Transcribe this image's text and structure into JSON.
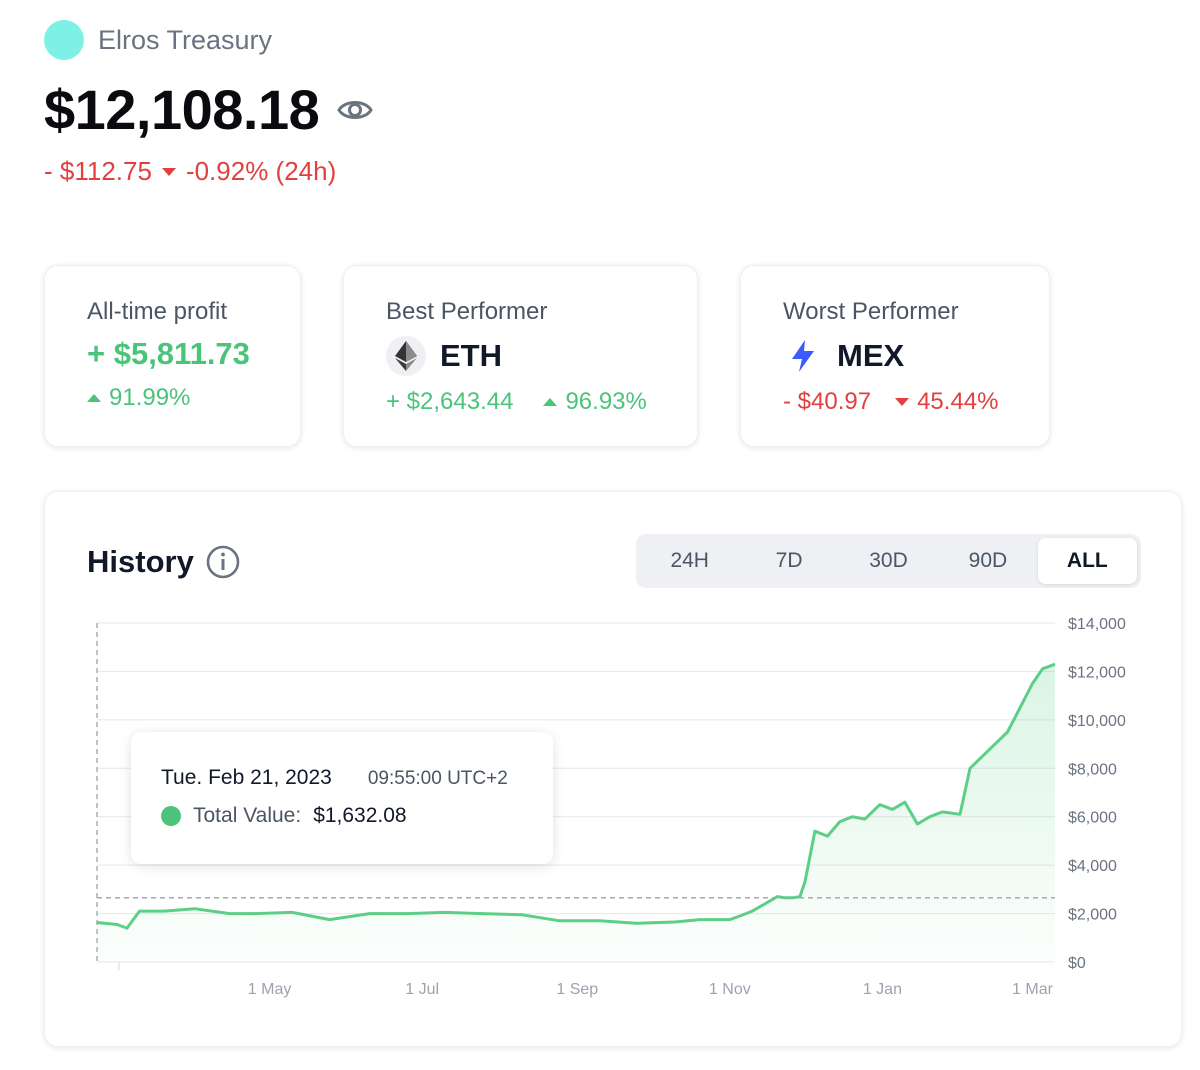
{
  "wallet": {
    "name": "Elros Treasury",
    "avatar_color": "#7ef0e6"
  },
  "balance": {
    "total": "$12,108.18",
    "change_amount": "- $112.75",
    "change_percent": "-0.92% (24h)"
  },
  "cards": {
    "profit": {
      "title": "All-time profit",
      "value": "+ $5,811.73",
      "percent": "91.99%"
    },
    "best": {
      "title": "Best Performer",
      "asset": "ETH",
      "amount": "+ $2,643.44",
      "percent": "96.93%"
    },
    "worst": {
      "title": "Worst Performer",
      "asset": "MEX",
      "amount": "- $40.97",
      "percent": "45.44%"
    }
  },
  "history": {
    "title": "History",
    "ranges": [
      "24H",
      "7D",
      "30D",
      "90D",
      "ALL"
    ],
    "active_range": "ALL",
    "tooltip": {
      "date": "Tue. Feb 21, 2023",
      "time": "09:55:00 UTC+2",
      "label": "Total Value:",
      "value": "$1,632.08"
    }
  },
  "colors": {
    "positive": "#4cc37a",
    "negative": "#e0413f",
    "line": "#5ccf86"
  },
  "chart_data": {
    "type": "area",
    "x_tick_labels": [
      "1 May",
      "1 Jul",
      "1 Sep",
      "1 Nov",
      "1 Jan",
      "1 Mar"
    ],
    "y_tick_labels": [
      "$0",
      "$2,000",
      "$4,000",
      "$6,000",
      "$8,000",
      "$10,000",
      "$12,000",
      "$14,000"
    ],
    "ylim": [
      0,
      14000
    ],
    "grid": true,
    "x": [
      "2023-02-21",
      "2023-03-01",
      "2023-03-05",
      "2023-03-10",
      "2023-03-20",
      "2023-04-01",
      "2023-04-15",
      "2023-04-25",
      "2023-05-10",
      "2023-05-25",
      "2023-06-10",
      "2023-06-25",
      "2023-07-10",
      "2023-07-25",
      "2023-08-10",
      "2023-08-25",
      "2023-09-10",
      "2023-09-25",
      "2023-10-10",
      "2023-10-20",
      "2023-11-01",
      "2023-11-05",
      "2023-11-10",
      "2023-11-15",
      "2023-11-20",
      "2023-11-23",
      "2023-11-26",
      "2023-11-29",
      "2023-12-01",
      "2023-12-05",
      "2023-12-10",
      "2023-12-15",
      "2023-12-20",
      "2023-12-25",
      "2023-12-31",
      "2024-01-05",
      "2024-01-10",
      "2024-01-15",
      "2024-01-20",
      "2024-01-25",
      "2024-02-01",
      "2024-02-05",
      "2024-02-10",
      "2024-02-15",
      "2024-02-20",
      "2024-02-25",
      "2024-03-01",
      "2024-03-05",
      "2024-03-10"
    ],
    "series": [
      {
        "values": [
          1632,
          1550,
          1400,
          2100,
          2100,
          2200,
          2000,
          2000,
          2050,
          1750,
          2000,
          2000,
          2050,
          2000,
          1950,
          1700,
          1700,
          1600,
          1650,
          1750,
          1750,
          1900,
          2100,
          2400,
          2700,
          2650,
          2650,
          2700,
          3300,
          5400,
          5200,
          5800,
          6000,
          5900,
          6500,
          6300,
          6600,
          5700,
          6000,
          6200,
          6100,
          8000,
          8500,
          9000,
          9500,
          10500,
          11500,
          12108,
          12300
        ]
      }
    ]
  }
}
